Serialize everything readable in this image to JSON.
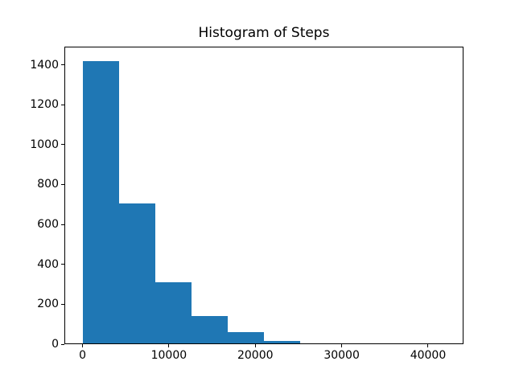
{
  "figure": {
    "background": "#ffffff",
    "text_color": "#000000",
    "spine_color": "#000000"
  },
  "chart_data": {
    "type": "bar",
    "subtype": "histogram",
    "title": "Histogram of Steps",
    "xlabel": "",
    "ylabel": "",
    "bar_color": "#1f77b4",
    "grid": false,
    "legend": null,
    "bin_edges": [
      0,
      4200,
      8400,
      12600,
      16800,
      21000,
      25200,
      29400,
      33600,
      37800,
      42000
    ],
    "counts": [
      1420,
      705,
      310,
      140,
      62,
      18,
      5,
      0,
      5,
      0
    ],
    "xlim": [
      -2100,
      44100
    ],
    "ylim": [
      0,
      1491
    ],
    "xticks": [
      0,
      10000,
      20000,
      30000,
      40000
    ],
    "yticks": [
      0,
      200,
      400,
      600,
      800,
      1000,
      1200,
      1400
    ]
  }
}
